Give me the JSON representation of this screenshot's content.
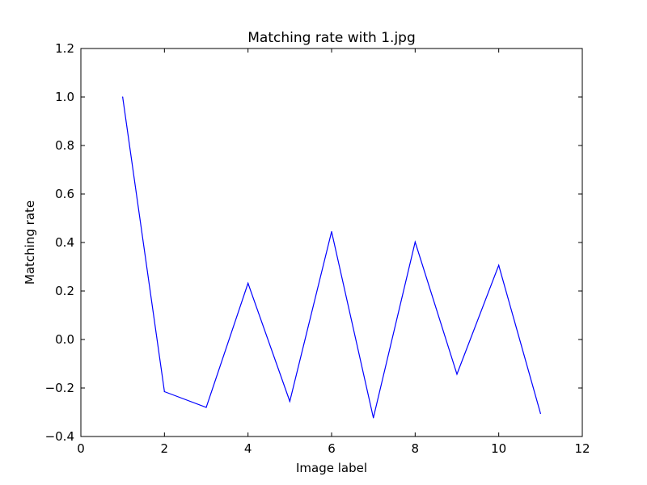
{
  "chart_data": {
    "type": "line",
    "title": "Matching rate with 1.jpg",
    "xlabel": "Image label",
    "ylabel": "Matching rate",
    "xlim": [
      0,
      12
    ],
    "ylim": [
      -0.4,
      1.2
    ],
    "grid": false,
    "x": [
      1,
      2,
      3,
      4,
      5,
      6,
      7,
      8,
      9,
      10,
      11
    ],
    "series": [
      {
        "values": [
          1.0,
          -0.215,
          -0.28,
          0.232,
          -0.255,
          0.445,
          -0.323,
          0.402,
          -0.143,
          0.306,
          -0.305
        ],
        "color": "#0000ff"
      }
    ],
    "x_ticks": [
      0,
      2,
      4,
      6,
      8,
      10,
      12
    ],
    "x_tick_labels": [
      "0",
      "2",
      "4",
      "6",
      "8",
      "10",
      "12"
    ],
    "y_ticks": [
      -0.4,
      -0.2,
      0.0,
      0.2,
      0.4,
      0.6,
      0.8,
      1.0,
      1.2
    ],
    "y_tick_labels": [
      "−0.4",
      "−0.2",
      "0.0",
      "0.2",
      "0.4",
      "0.6",
      "0.8",
      "1.0",
      "1.2"
    ]
  }
}
